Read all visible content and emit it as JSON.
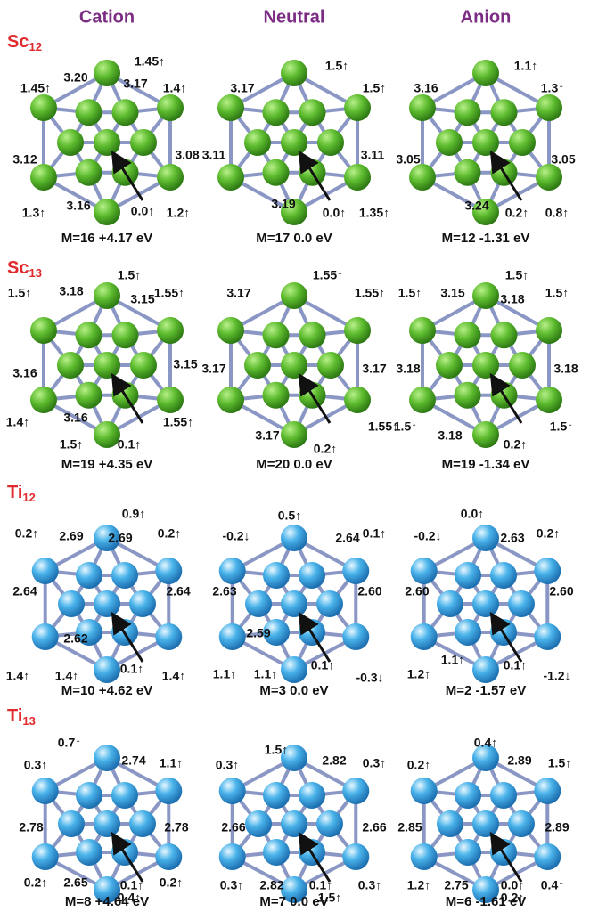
{
  "columns": [
    "Cation",
    "Neutral",
    "Anion"
  ],
  "rows": [
    {
      "element": "Sc",
      "size": "12",
      "panels": [
        {
          "labels": [
            "1.45↑",
            "1.45↑",
            "3.20",
            "3.17",
            "1.4↑",
            "3.12",
            "3.08",
            "1.3↑",
            "3.16",
            "0.0↑",
            "1.2↑"
          ],
          "caption": "M=16 +4.17 eV"
        },
        {
          "labels": [
            "1.5↑",
            "3.17",
            "1.5↑",
            "3.11",
            "3.11",
            "3.19",
            "0.0↑",
            "1.35↑"
          ],
          "caption": "M=17 0.0 eV"
        },
        {
          "labels": [
            "1.1↑",
            "3.16",
            "1.3↑",
            "3.05",
            "3.05",
            "3.24",
            "0.2↑",
            "0.8↑"
          ],
          "caption": "M=12 -1.31 eV"
        }
      ]
    },
    {
      "element": "Sc",
      "size": "13",
      "panels": [
        {
          "labels": [
            "1.5↑",
            "1.5↑",
            "3.18",
            "3.15",
            "1.55↑",
            "3.16",
            "3.15",
            "3.16",
            "1.4↑",
            "1.55↑",
            "1.5↑",
            "0.1↑"
          ],
          "caption": "M=19 +4.35 eV"
        },
        {
          "labels": [
            "1.55↑",
            "3.17",
            "1.55↑",
            "3.17",
            "3.17",
            "3.17",
            "1.55↑",
            "0.2↑"
          ],
          "caption": "M=20 0.0 eV"
        },
        {
          "labels": [
            "1.5↑",
            "1.5↑",
            "3.15",
            "3.18",
            "1.5↑",
            "3.18",
            "3.18",
            "1.5↑",
            "3.18",
            "0.2↑",
            "1.5↑"
          ],
          "caption": "M=19  -1.34 eV"
        }
      ]
    },
    {
      "element": "Ti",
      "size": "12",
      "panels": [
        {
          "labels": [
            "0.9↑",
            "0.2↑",
            "2.69",
            "2.69",
            "0.2↑",
            "2.64",
            "2.64",
            "2.62",
            "1.4↑",
            "1.4↑",
            "0.1↑",
            "1.4↑"
          ],
          "caption": "M=10 +4.62 eV"
        },
        {
          "labels": [
            "0.5↑",
            "-0.2↓",
            "2.64",
            "0.1↑",
            "2.63",
            "2.60",
            "2.59",
            "1.1↑",
            "1.1↑",
            "0.1↑",
            "-0.3↓"
          ],
          "caption": "M=3 0.0 eV"
        },
        {
          "labels": [
            "0.0↑",
            "-0.2↓",
            "2.63",
            "0.2↑",
            "2.60",
            "2.60",
            "1.2↑",
            "1.1↑",
            "0.1↑",
            "-1.2↓"
          ],
          "caption": "M=2 -1.57 eV"
        }
      ]
    },
    {
      "element": "Ti",
      "size": "13",
      "panels": [
        {
          "labels": [
            "0.7↑",
            "0.3↑",
            "2.74",
            "1.1↑",
            "2.78",
            "2.78",
            "0.2↑",
            "2.65",
            "0.1↑",
            "0.2↑",
            "0.4↑"
          ],
          "caption": "M=8 +4.64 eV"
        },
        {
          "labels": [
            "1.5↑",
            "0.3↑",
            "2.82",
            "0.3↑",
            "2.66",
            "2.66",
            "0.3↑",
            "2.82",
            "0.1↑",
            "0.3↑",
            "1.5↑"
          ],
          "caption": "M=7 0.0 eV"
        },
        {
          "labels": [
            "0.4↑",
            "0.2↑",
            "2.89",
            "1.5↑",
            "2.85",
            "2.89",
            "1.2↑",
            "2.75",
            "0.0↑",
            "0.4↑",
            "0.2↑"
          ],
          "caption": "M=6 -1.61 eV"
        }
      ]
    }
  ]
}
